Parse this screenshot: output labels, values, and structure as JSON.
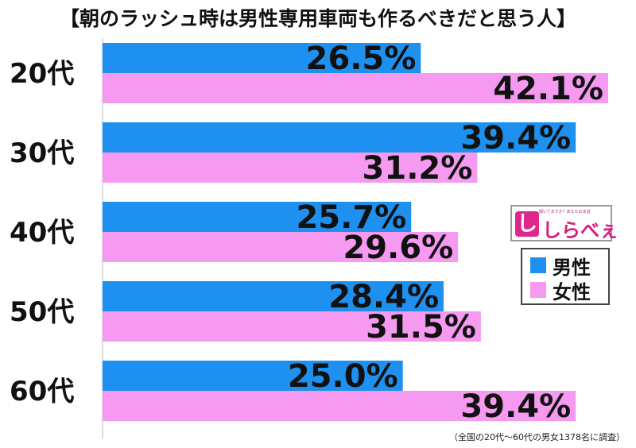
{
  "title": "【朝のラッシュ時は男性専用車両も作るべきだと思う人】",
  "footnote": "（全国の20代～60代の男女1378名に調査）",
  "logo": {
    "brand": "しらべぇ",
    "mark": "し",
    "tagline": "聞いてますか？あなたの本音"
  },
  "colors": {
    "male": "#1e90f0",
    "female": "#f59af0"
  },
  "chart_data": {
    "type": "bar",
    "orientation": "horizontal",
    "title": "【朝のラッシュ時は男性専用車両も作るべきだと思う人】",
    "categories": [
      "20代",
      "30代",
      "40代",
      "50代",
      "60代"
    ],
    "series": [
      {
        "name": "男性",
        "values": [
          26.5,
          39.4,
          25.7,
          28.4,
          25.0
        ],
        "labels": [
          "26.5%",
          "39.4%",
          "25.7%",
          "28.4%",
          "25.0%"
        ]
      },
      {
        "name": "女性",
        "values": [
          42.1,
          31.2,
          29.6,
          31.5,
          39.4
        ],
        "labels": [
          "42.1%",
          "31.2%",
          "29.6%",
          "31.5%",
          "39.4%"
        ]
      }
    ],
    "xlim": [
      0,
      50
    ],
    "legend": "right",
    "grid": false
  }
}
